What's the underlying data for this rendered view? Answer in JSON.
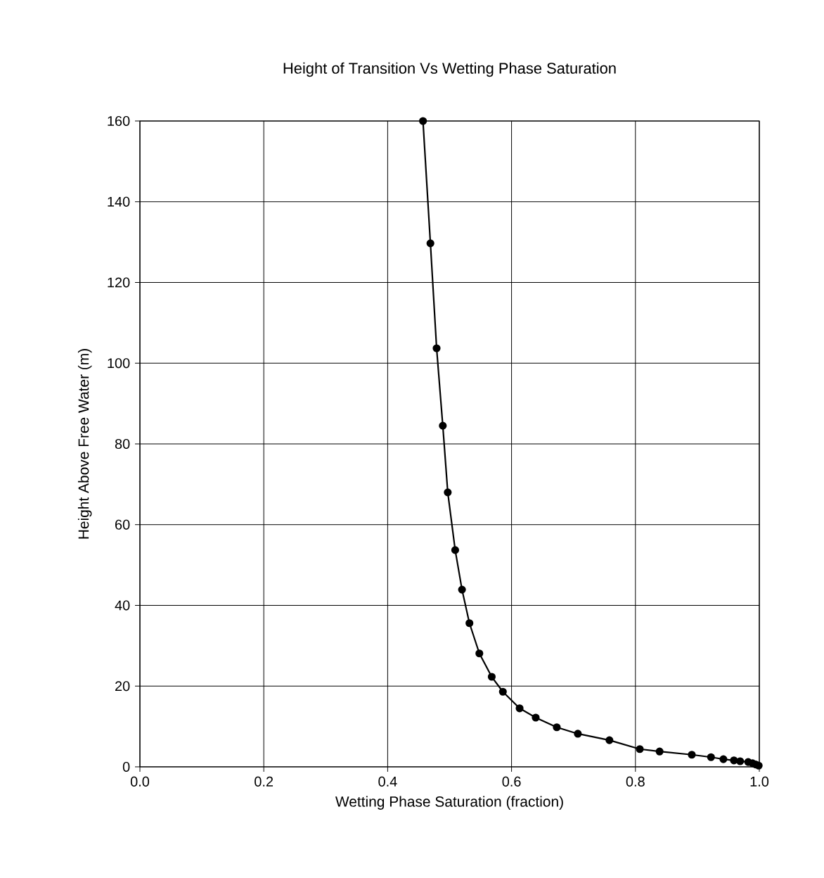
{
  "chart_data": {
    "type": "line",
    "title": "Height of Transition Vs Wetting Phase Saturation",
    "xlabel": "Wetting Phase Saturation (fraction)",
    "ylabel": "Height Above Free Water (m)",
    "x": [
      0.457,
      0.469,
      0.479,
      0.489,
      0.497,
      0.509,
      0.52,
      0.532,
      0.548,
      0.568,
      0.586,
      0.613,
      0.639,
      0.673,
      0.707,
      0.758,
      0.807,
      0.839,
      0.891,
      0.922,
      0.942,
      0.959,
      0.969,
      0.982,
      0.989,
      0.994,
      0.999
    ],
    "series": [
      {
        "color": "#000000",
        "values": [
          160,
          129.7,
          103.7,
          84.5,
          68.0,
          53.7,
          43.9,
          35.6,
          28.1,
          22.3,
          18.6,
          14.5,
          12.2,
          9.8,
          8.2,
          6.6,
          4.4,
          3.8,
          3.0,
          2.4,
          1.9,
          1.6,
          1.4,
          1.2,
          0.9,
          0.6,
          0.3
        ]
      }
    ],
    "xlim": [
      0.0,
      1.0
    ],
    "ylim": [
      0,
      160
    ],
    "xticks": [
      {
        "value": 0,
        "label": "0.0"
      },
      0.2,
      0.4,
      0.6,
      0.8,
      {
        "value": 1,
        "label": "1.0"
      }
    ],
    "yticks": [
      0,
      20,
      40,
      60,
      80,
      100,
      120,
      140,
      160
    ],
    "grid": true,
    "marker": "circle",
    "line_style": "solid"
  }
}
